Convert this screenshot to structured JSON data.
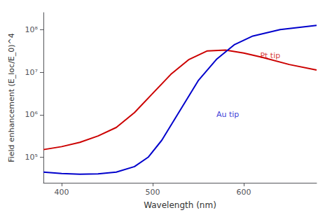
{
  "chart_data": {
    "type": "line",
    "log": "y",
    "xlabel": "Wavelength (nm)",
    "ylabel": "Field enhancement (E_loc/E_0)^4",
    "xlim": [
      380,
      680
    ],
    "xticks": [
      400,
      500,
      600
    ],
    "ylim": [
      25118.8643150958,
      251188643.150958
    ],
    "yticks": [
      {
        "value": 100000,
        "label": "10⁵"
      },
      {
        "value": 1000000,
        "label": "10⁶"
      },
      {
        "value": 10000000,
        "label": "10⁷"
      },
      {
        "value": 100000000,
        "label": "10⁸"
      }
    ],
    "grid": false,
    "series": [
      {
        "name": "Pt tip",
        "color": "#cc0000",
        "x": [
          380,
          400,
          420,
          440,
          460,
          480,
          500,
          520,
          540,
          560,
          580,
          600,
          620,
          650,
          680
        ],
        "values": [
          151356.1248,
          177827.941,
          223872.1139,
          316227.766,
          501187.2336,
          1122018.454,
          3162277.66,
          8912509.381,
          19952623.15,
          31622776.6,
          33113112.15,
          28183829.31,
          22387211.39,
          15135612.48,
          11220184.54
        ]
      },
      {
        "name": "Au tip",
        "color": "#0000cc",
        "x": [
          380,
          400,
          420,
          440,
          460,
          480,
          495,
          510,
          530,
          550,
          570,
          590,
          610,
          640,
          680
        ],
        "values": [
          44668.35922,
          41686.93835,
          39810.71706,
          40738.02778,
          44668.35922,
          60255.95861,
          100000,
          251188.6432,
          1258925.412,
          6309573.445,
          19952623.15,
          44668359.22,
          70794578.44,
          100000000,
          125892541.2
        ]
      }
    ],
    "annotations": [
      {
        "text": "Pt tip",
        "x": 618,
        "y": 23988329.19,
        "color": "#cc0000"
      },
      {
        "text": "Au tip",
        "x": 570,
        "y": 1000000,
        "color": "#0000cc"
      }
    ]
  }
}
